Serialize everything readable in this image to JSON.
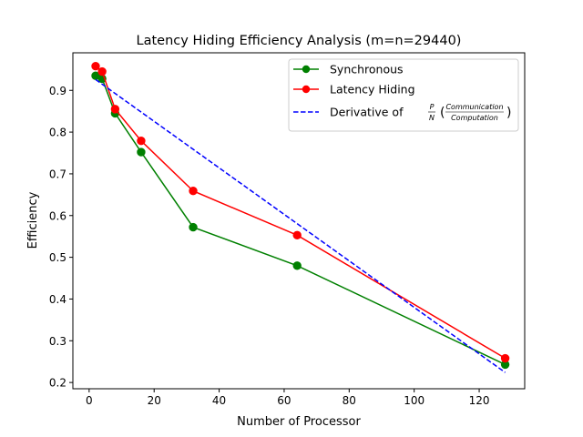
{
  "chart_data": {
    "type": "line",
    "title": "Latency Hiding Efficiency Analysis (m=n=29440)",
    "xlabel": "Number of Processor",
    "ylabel": "Efficiency",
    "xlim": [
      -5,
      134
    ],
    "ylim": [
      0.185,
      0.99
    ],
    "xticks": [
      0,
      20,
      40,
      60,
      80,
      100,
      120
    ],
    "yticks": [
      0.2,
      0.3,
      0.4,
      0.5,
      0.6,
      0.7,
      0.8,
      0.9
    ],
    "grid": false,
    "legend_position": "top-right",
    "series": [
      {
        "name": "Synchronous",
        "color": "#008000",
        "style": "solid",
        "marker": "circle",
        "x": [
          2,
          4,
          8,
          16,
          32,
          64,
          128
        ],
        "y": [
          0.935,
          0.928,
          0.845,
          0.752,
          0.572,
          0.48,
          0.243
        ]
      },
      {
        "name": "Latency Hiding",
        "color": "#ff0000",
        "style": "solid",
        "marker": "circle",
        "x": [
          2,
          4,
          8,
          16,
          32,
          64,
          128
        ],
        "y": [
          0.958,
          0.945,
          0.855,
          0.779,
          0.659,
          0.553,
          0.258
        ]
      },
      {
        "name": "Derivative of",
        "name_math": {
          "num": "P",
          "den": "N",
          "inner_num": "Communication",
          "inner_den": "Computation"
        },
        "color": "#0000ff",
        "style": "dashed",
        "marker": "none",
        "x": [
          2,
          128
        ],
        "y": [
          0.926,
          0.224
        ]
      }
    ]
  }
}
